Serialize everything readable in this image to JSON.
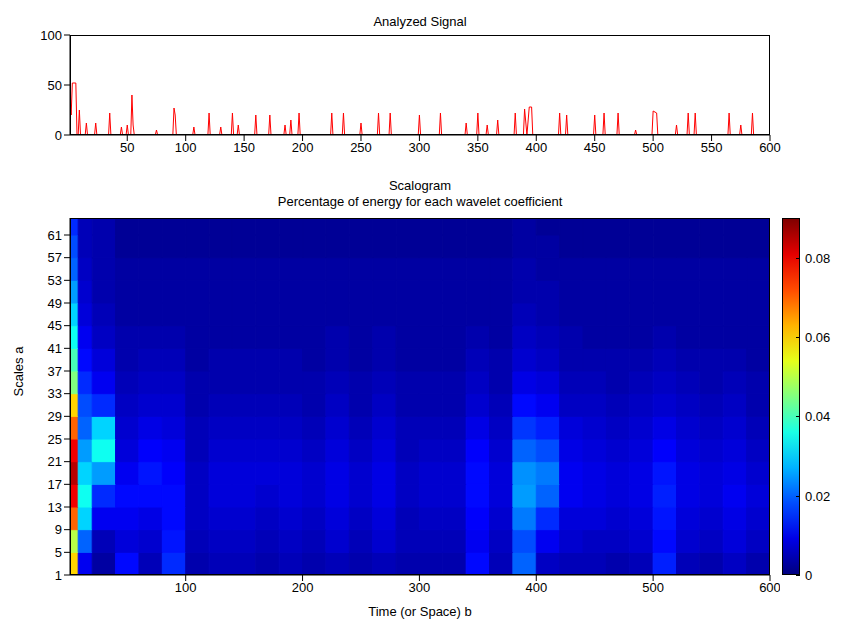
{
  "chart_data": [
    {
      "type": "line",
      "title": "Analyzed Signal",
      "color": "#ff0000",
      "x": [
        1,
        2,
        3,
        6,
        7,
        8,
        9,
        10,
        14,
        15,
        16,
        22,
        23,
        24,
        34,
        35,
        36,
        44,
        45,
        46,
        49,
        50,
        51,
        53,
        54,
        55,
        56,
        74,
        75,
        76,
        89,
        90,
        91,
        92,
        106,
        107,
        108,
        119,
        120,
        121,
        129,
        130,
        131,
        139,
        140,
        141,
        144,
        145,
        146,
        159,
        160,
        161,
        171,
        172,
        173,
        184,
        185,
        186,
        189,
        190,
        191,
        196,
        197,
        198,
        224,
        225,
        226,
        234,
        235,
        236,
        249,
        250,
        251,
        264,
        265,
        266,
        274,
        275,
        276,
        299,
        300,
        301,
        317,
        318,
        319,
        339,
        340,
        341,
        349,
        350,
        351,
        357,
        358,
        359,
        366,
        367,
        368,
        381,
        382,
        383,
        389,
        390,
        392,
        394,
        396,
        397,
        419,
        420,
        421,
        425,
        426,
        427,
        449,
        450,
        451,
        457,
        458,
        459,
        469,
        470,
        471,
        484,
        485,
        486,
        499,
        500,
        503,
        504,
        519,
        520,
        521,
        529,
        530,
        531,
        535,
        536,
        537,
        564,
        565,
        566,
        574,
        575,
        576,
        584,
        585,
        586,
        600
      ],
      "values": [
        35,
        20,
        52,
        52,
        0,
        0,
        25,
        0,
        0,
        12,
        0,
        0,
        12,
        0,
        0,
        22,
        0,
        0,
        8,
        0,
        0,
        10,
        0,
        0,
        40,
        10,
        0,
        0,
        5,
        0,
        0,
        27,
        20,
        0,
        0,
        8,
        0,
        0,
        22,
        0,
        0,
        8,
        0,
        0,
        22,
        0,
        0,
        10,
        0,
        0,
        20,
        0,
        0,
        20,
        0,
        0,
        10,
        0,
        0,
        15,
        0,
        0,
        22,
        0,
        0,
        22,
        0,
        0,
        22,
        0,
        0,
        12,
        0,
        0,
        22,
        0,
        0,
        22,
        0,
        0,
        20,
        0,
        0,
        22,
        0,
        0,
        12,
        0,
        0,
        22,
        0,
        0,
        10,
        0,
        0,
        15,
        0,
        0,
        22,
        0,
        0,
        26,
        0,
        28,
        28,
        0,
        0,
        22,
        0,
        0,
        20,
        0,
        0,
        20,
        0,
        0,
        22,
        0,
        0,
        22,
        0,
        0,
        5,
        0,
        0,
        24,
        22,
        0,
        0,
        10,
        0,
        0,
        22,
        0,
        0,
        22,
        0,
        0,
        22,
        0,
        0,
        10,
        0,
        0,
        22,
        0,
        0
      ],
      "xlim": [
        1,
        600
      ],
      "xticks": [
        50,
        100,
        150,
        200,
        250,
        300,
        350,
        400,
        450,
        500,
        550,
        600
      ],
      "ylim": [
        0,
        100
      ],
      "yticks": [
        0,
        50,
        100
      ]
    },
    {
      "type": "heatmap",
      "title": "Scalogram",
      "subtitle": "Percentage of energy for each wavelet coefficient",
      "x_label": "Time (or Space) b",
      "y_label": "Scales a",
      "xlim": [
        1,
        600
      ],
      "xticks": [
        100,
        200,
        300,
        400,
        500,
        600
      ],
      "ylim": [
        1,
        64
      ],
      "yticks": [
        1,
        5,
        9,
        13,
        17,
        21,
        25,
        29,
        33,
        37,
        41,
        45,
        49,
        53,
        57,
        61
      ],
      "x_edges": [
        1,
        8,
        20,
        40,
        60,
        80,
        100,
        120,
        140,
        160,
        180,
        200,
        220,
        240,
        260,
        280,
        300,
        320,
        340,
        360,
        380,
        400,
        420,
        440,
        460,
        480,
        500,
        520,
        540,
        560,
        580,
        600
      ],
      "y_edges": [
        1,
        5,
        9,
        13,
        17,
        21,
        25,
        29,
        33,
        37,
        41,
        45,
        49,
        53,
        57,
        61,
        64
      ],
      "cells": [
        [
          0.06,
          0.01,
          0.003,
          0.012,
          0.005,
          0.015,
          0.004,
          0.005,
          0.005,
          0.004,
          0.005,
          0.004,
          0.005,
          0.004,
          0.005,
          0.004,
          0.004,
          0.004,
          0.012,
          0.005,
          0.02,
          0.006,
          0.005,
          0.005,
          0.004,
          0.005,
          0.014,
          0.005,
          0.004,
          0.006,
          0.004
        ],
        [
          0.05,
          0.02,
          0.005,
          0.008,
          0.007,
          0.013,
          0.005,
          0.006,
          0.006,
          0.005,
          0.006,
          0.005,
          0.007,
          0.005,
          0.007,
          0.005,
          0.005,
          0.005,
          0.01,
          0.006,
          0.018,
          0.01,
          0.007,
          0.006,
          0.006,
          0.007,
          0.012,
          0.007,
          0.006,
          0.008,
          0.006
        ],
        [
          0.07,
          0.03,
          0.01,
          0.01,
          0.009,
          0.012,
          0.006,
          0.007,
          0.007,
          0.006,
          0.007,
          0.006,
          0.008,
          0.006,
          0.008,
          0.005,
          0.006,
          0.006,
          0.011,
          0.007,
          0.022,
          0.015,
          0.008,
          0.008,
          0.007,
          0.008,
          0.013,
          0.008,
          0.007,
          0.009,
          0.007
        ],
        [
          0.08,
          0.035,
          0.015,
          0.012,
          0.012,
          0.012,
          0.006,
          0.008,
          0.008,
          0.007,
          0.008,
          0.007,
          0.009,
          0.007,
          0.009,
          0.006,
          0.007,
          0.007,
          0.012,
          0.008,
          0.025,
          0.02,
          0.01,
          0.009,
          0.008,
          0.009,
          0.014,
          0.009,
          0.008,
          0.01,
          0.008
        ],
        [
          0.085,
          0.03,
          0.025,
          0.01,
          0.013,
          0.011,
          0.006,
          0.008,
          0.008,
          0.008,
          0.008,
          0.007,
          0.009,
          0.007,
          0.009,
          0.006,
          0.007,
          0.007,
          0.012,
          0.008,
          0.024,
          0.022,
          0.01,
          0.009,
          0.008,
          0.009,
          0.013,
          0.009,
          0.008,
          0.009,
          0.007
        ],
        [
          0.08,
          0.025,
          0.035,
          0.008,
          0.011,
          0.01,
          0.005,
          0.007,
          0.007,
          0.007,
          0.007,
          0.006,
          0.008,
          0.006,
          0.008,
          0.005,
          0.006,
          0.006,
          0.011,
          0.007,
          0.02,
          0.018,
          0.009,
          0.008,
          0.007,
          0.008,
          0.011,
          0.008,
          0.007,
          0.008,
          0.006
        ],
        [
          0.07,
          0.02,
          0.03,
          0.007,
          0.009,
          0.008,
          0.005,
          0.006,
          0.006,
          0.006,
          0.006,
          0.005,
          0.007,
          0.005,
          0.007,
          0.005,
          0.005,
          0.005,
          0.009,
          0.006,
          0.016,
          0.014,
          0.008,
          0.007,
          0.006,
          0.007,
          0.009,
          0.007,
          0.006,
          0.007,
          0.005
        ],
        [
          0.06,
          0.018,
          0.015,
          0.006,
          0.007,
          0.007,
          0.004,
          0.005,
          0.005,
          0.005,
          0.005,
          0.004,
          0.006,
          0.004,
          0.006,
          0.004,
          0.004,
          0.004,
          0.007,
          0.005,
          0.012,
          0.01,
          0.006,
          0.006,
          0.005,
          0.006,
          0.007,
          0.006,
          0.005,
          0.006,
          0.004
        ],
        [
          0.045,
          0.015,
          0.01,
          0.005,
          0.006,
          0.006,
          0.004,
          0.004,
          0.004,
          0.004,
          0.004,
          0.004,
          0.005,
          0.004,
          0.005,
          0.004,
          0.004,
          0.004,
          0.006,
          0.004,
          0.009,
          0.008,
          0.005,
          0.005,
          0.004,
          0.005,
          0.006,
          0.005,
          0.004,
          0.005,
          0.004
        ],
        [
          0.04,
          0.012,
          0.008,
          0.004,
          0.005,
          0.005,
          0.003,
          0.004,
          0.004,
          0.004,
          0.004,
          0.003,
          0.004,
          0.003,
          0.004,
          0.003,
          0.003,
          0.003,
          0.005,
          0.004,
          0.007,
          0.006,
          0.004,
          0.004,
          0.004,
          0.004,
          0.005,
          0.004,
          0.004,
          0.004,
          0.003
        ],
        [
          0.035,
          0.01,
          0.006,
          0.004,
          0.004,
          0.004,
          0.003,
          0.003,
          0.003,
          0.003,
          0.003,
          0.003,
          0.004,
          0.003,
          0.004,
          0.003,
          0.003,
          0.003,
          0.004,
          0.003,
          0.006,
          0.005,
          0.004,
          0.003,
          0.003,
          0.003,
          0.004,
          0.003,
          0.003,
          0.003,
          0.003
        ],
        [
          0.03,
          0.008,
          0.005,
          0.003,
          0.003,
          0.003,
          0.003,
          0.003,
          0.003,
          0.003,
          0.003,
          0.003,
          0.003,
          0.003,
          0.003,
          0.003,
          0.003,
          0.003,
          0.003,
          0.003,
          0.005,
          0.004,
          0.003,
          0.003,
          0.003,
          0.003,
          0.003,
          0.003,
          0.003,
          0.003,
          0.003
        ],
        [
          0.025,
          0.007,
          0.004,
          0.003,
          0.003,
          0.003,
          0.003,
          0.003,
          0.003,
          0.003,
          0.003,
          0.003,
          0.003,
          0.003,
          0.003,
          0.003,
          0.003,
          0.003,
          0.003,
          0.003,
          0.004,
          0.004,
          0.003,
          0.003,
          0.003,
          0.003,
          0.003,
          0.003,
          0.003,
          0.003,
          0.003
        ],
        [
          0.02,
          0.006,
          0.004,
          0.003,
          0.003,
          0.003,
          0.003,
          0.003,
          0.003,
          0.003,
          0.003,
          0.003,
          0.003,
          0.003,
          0.003,
          0.003,
          0.003,
          0.003,
          0.003,
          0.003,
          0.004,
          0.003,
          0.003,
          0.003,
          0.003,
          0.003,
          0.003,
          0.003,
          0.003,
          0.003,
          0.003
        ],
        [
          0.018,
          0.005,
          0.004,
          0.002,
          0.002,
          0.002,
          0.002,
          0.002,
          0.002,
          0.002,
          0.002,
          0.002,
          0.002,
          0.002,
          0.002,
          0.002,
          0.002,
          0.002,
          0.002,
          0.002,
          0.003,
          0.003,
          0.002,
          0.002,
          0.002,
          0.002,
          0.002,
          0.002,
          0.002,
          0.002,
          0.002
        ],
        [
          0.015,
          0.005,
          0.004,
          0.002,
          0.002,
          0.002,
          0.002,
          0.002,
          0.002,
          0.002,
          0.002,
          0.002,
          0.002,
          0.002,
          0.002,
          0.002,
          0.002,
          0.002,
          0.002,
          0.002,
          0.003,
          0.002,
          0.002,
          0.002,
          0.002,
          0.002,
          0.002,
          0.002,
          0.002,
          0.002,
          0.002
        ]
      ],
      "colorbar_lim": [
        0,
        0.09
      ],
      "colorbar_ticks": [
        0,
        0.02,
        0.04,
        0.06,
        0.08
      ]
    }
  ]
}
